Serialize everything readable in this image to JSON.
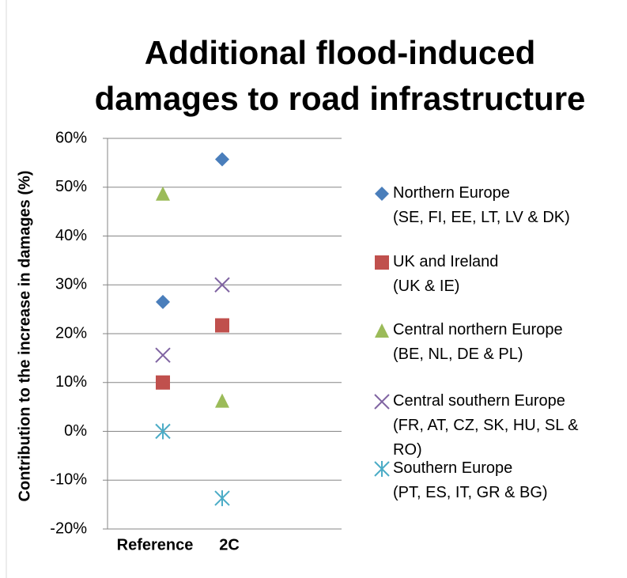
{
  "chart_data": {
    "type": "scatter",
    "title": "Additional flood-induced damages to road infrastructure",
    "y_label": "Contribution to the increase in damages (%)",
    "categories": [
      "Reference",
      "2C"
    ],
    "ylim": [
      -20,
      60
    ],
    "yticks": [
      {
        "value": -20,
        "label": "-20%"
      },
      {
        "value": -10,
        "label": "-10%"
      },
      {
        "value": 0,
        "label": "0%"
      },
      {
        "value": 10,
        "label": "10%"
      },
      {
        "value": 20,
        "label": "20%"
      },
      {
        "value": 30,
        "label": "30%"
      },
      {
        "value": 40,
        "label": "40%"
      },
      {
        "value": 50,
        "label": "50%"
      },
      {
        "value": 60,
        "label": "60%"
      }
    ],
    "grid": true,
    "legend": "right",
    "series": [
      {
        "name": "Northern Europe\n(SE, FI, EE, LT, LV & DK)",
        "color": "#4a7ebb",
        "marker": "diamond",
        "values": [
          26.5,
          55.7
        ]
      },
      {
        "name": "UK and Ireland\n(UK & IE)",
        "color": "#c0504d",
        "marker": "square",
        "values": [
          10,
          21.7
        ]
      },
      {
        "name": "Central northern Europe\n (BE, NL, DE & PL)",
        "color": "#9bbb59",
        "marker": "triangle",
        "values": [
          48.7,
          6.3
        ]
      },
      {
        "name": "Central southern Europe\n(FR, AT, CZ, SK, HU, SL &\nRO)",
        "color": "#8064a2",
        "marker": "x",
        "values": [
          15.6,
          30
        ]
      },
      {
        "name": " Southern Europe\n(PT, ES, IT, GR & BG)",
        "color": "#4bacc6",
        "marker": "star",
        "values": [
          0,
          -13.7
        ]
      }
    ]
  }
}
